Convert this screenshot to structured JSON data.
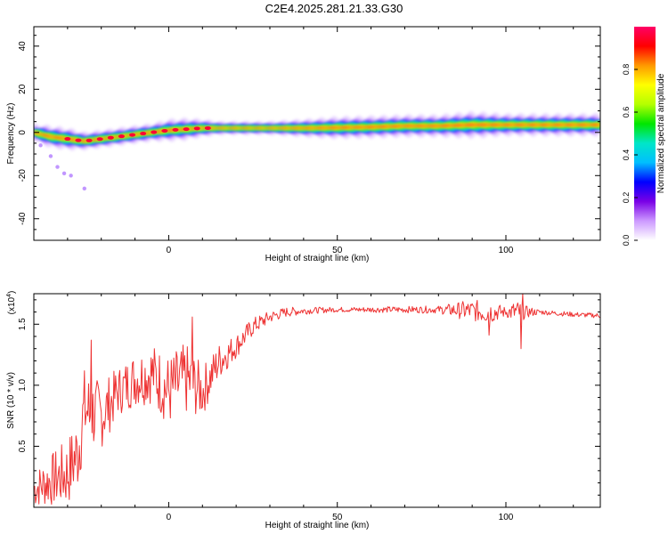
{
  "title": "C2E4.2025.281.21.33.G30",
  "chart_data": [
    {
      "type": "heatmap",
      "xlabel": "Height of straight line (km)",
      "ylabel": "Frequency (Hz)",
      "xlim": [
        -40,
        128
      ],
      "ylim": [
        -50,
        49
      ],
      "xticks": [
        0,
        50,
        100
      ],
      "yticks": [
        -40,
        -20,
        0,
        20,
        40
      ],
      "grid": false,
      "colorbar": {
        "label": "Normalized spectral amplitude",
        "ticks": [
          "0.0",
          "0.2",
          "0.4",
          "0.6",
          "0.8"
        ],
        "range": [
          0,
          1
        ],
        "colors": [
          "#ffffff",
          "#cc99ff",
          "#7a00e6",
          "#0000ff",
          "#00bfff",
          "#00e6c8",
          "#00e600",
          "#b4ff00",
          "#ffff00",
          "#ff9900",
          "#ff0000",
          "#ff0066"
        ]
      },
      "ridge": {
        "x": [
          -40,
          -35,
          -30,
          -25,
          -20,
          -15,
          -10,
          -5,
          0,
          5,
          10,
          15,
          20,
          30,
          40,
          50,
          60,
          70,
          80,
          90,
          100,
          110,
          120,
          128
        ],
        "freq": [
          0,
          -2,
          -3,
          -4,
          -3,
          -2,
          -1,
          0,
          1,
          1.5,
          2,
          2,
          2,
          2,
          2,
          2.2,
          2.5,
          3,
          3,
          3.5,
          3.5,
          3.5,
          3.5,
          3.5
        ],
        "bandwidth": [
          4,
          5,
          5,
          4,
          4,
          4,
          4,
          4,
          5,
          5,
          4,
          3,
          3,
          3,
          4,
          5,
          5,
          5,
          5,
          6,
          5,
          5,
          5,
          5
        ]
      },
      "scatter_points": [
        {
          "x": -38,
          "y": -6
        },
        {
          "x": -35,
          "y": -11
        },
        {
          "x": -33,
          "y": -16
        },
        {
          "x": -31,
          "y": -19
        },
        {
          "x": -29,
          "y": -20
        },
        {
          "x": -25,
          "y": -26
        }
      ]
    },
    {
      "type": "line",
      "xlabel": "Height of straight line (km)",
      "ylabel": "SNR (10 * v/v)",
      "scale_label": "(x10",
      "scale_exponent": "4",
      "xlim": [
        -40,
        128
      ],
      "ylim": [
        0,
        1.75
      ],
      "xticks": [
        0,
        50,
        100
      ],
      "yticks": [
        "0.5",
        "1.0",
        "1.5"
      ],
      "grid": false,
      "color": "#ee3333",
      "envelope": {
        "x": [
          -40,
          -35,
          -30,
          -27,
          -25,
          -20,
          -15,
          -10,
          -5,
          0,
          5,
          10,
          15,
          20,
          25,
          30,
          35,
          40,
          50,
          60,
          70,
          80,
          90,
          95,
          100,
          105,
          110,
          120,
          128
        ],
        "y": [
          0.15,
          0.22,
          0.28,
          0.45,
          0.8,
          0.75,
          0.95,
          1.05,
          1.1,
          0.95,
          1.05,
          0.95,
          1.2,
          1.32,
          1.48,
          1.56,
          1.6,
          1.61,
          1.62,
          1.62,
          1.62,
          1.62,
          1.61,
          1.6,
          1.6,
          1.6,
          1.6,
          1.58,
          1.57
        ]
      },
      "noise_amplitude": {
        "x": [
          -40,
          -25,
          -15,
          -5,
          0,
          5,
          12,
          20,
          30,
          40,
          50,
          80,
          88,
          95,
          100,
          103,
          106,
          110,
          128
        ],
        "a": [
          0.15,
          0.35,
          0.2,
          0.25,
          0.3,
          0.3,
          0.18,
          0.1,
          0.05,
          0.03,
          0.02,
          0.03,
          0.08,
          0.1,
          0.04,
          0.1,
          0.05,
          0.02,
          0.02
        ]
      },
      "spikes": [
        {
          "x": -23,
          "y": 1.37
        },
        {
          "x": -23.5,
          "y": 0.7
        },
        {
          "x": 7,
          "y": 1.56
        },
        {
          "x": 95,
          "y": 1.41
        },
        {
          "x": 104.5,
          "y": 1.3
        },
        {
          "x": 105,
          "y": 1.75
        }
      ]
    }
  ]
}
